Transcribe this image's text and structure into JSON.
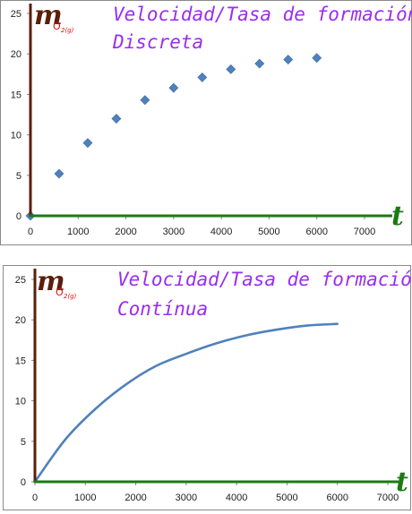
{
  "charts": [
    {
      "title_line1": "Velocidad/Tasa de formación",
      "title_line2": "Discreta",
      "y_symbol": "m",
      "y_symbol_species": "O",
      "y_symbol_sub": "2(g)",
      "x_symbol": "t"
    },
    {
      "title_line1": "Velocidad/Tasa de formación",
      "title_line2": "Contínua",
      "y_symbol": "m",
      "y_symbol_species": "O",
      "y_symbol_sub": "2(g)",
      "x_symbol": "t"
    }
  ],
  "chart_data": [
    {
      "type": "scatter",
      "title": "Velocidad/Tasa de formación Discreta",
      "xlabel": "t",
      "ylabel": "mO2(g)",
      "xlim": [
        0,
        7000
      ],
      "ylim": [
        0,
        25
      ],
      "x_ticks": [
        0,
        1000,
        2000,
        3000,
        4000,
        5000,
        6000,
        7000
      ],
      "y_ticks": [
        0,
        5,
        10,
        15,
        20,
        25
      ],
      "grid": false,
      "legend": "none",
      "marker": "diamond",
      "color": "#4f81bd",
      "x": [
        0,
        600,
        1200,
        1800,
        2400,
        3000,
        3600,
        4200,
        4800,
        5400,
        6000
      ],
      "y": [
        0,
        5.2,
        9.0,
        12.0,
        14.3,
        15.8,
        17.1,
        18.1,
        18.8,
        19.3,
        19.5
      ]
    },
    {
      "type": "line",
      "title": "Velocidad/Tasa de formación Contínua",
      "xlabel": "t",
      "ylabel": "mO2(g)",
      "xlim": [
        0,
        7000
      ],
      "ylim": [
        0,
        25
      ],
      "x_ticks": [
        0,
        1000,
        2000,
        3000,
        4000,
        5000,
        6000,
        7000
      ],
      "y_ticks": [
        0,
        5,
        10,
        15,
        20,
        25
      ],
      "grid": false,
      "legend": "none",
      "color": "#4f81bd",
      "x": [
        0,
        600,
        1200,
        1800,
        2400,
        3000,
        3600,
        4200,
        4800,
        5400,
        6000
      ],
      "y": [
        0,
        5.2,
        9.0,
        12.0,
        14.3,
        15.8,
        17.1,
        18.1,
        18.8,
        19.3,
        19.5
      ]
    }
  ]
}
